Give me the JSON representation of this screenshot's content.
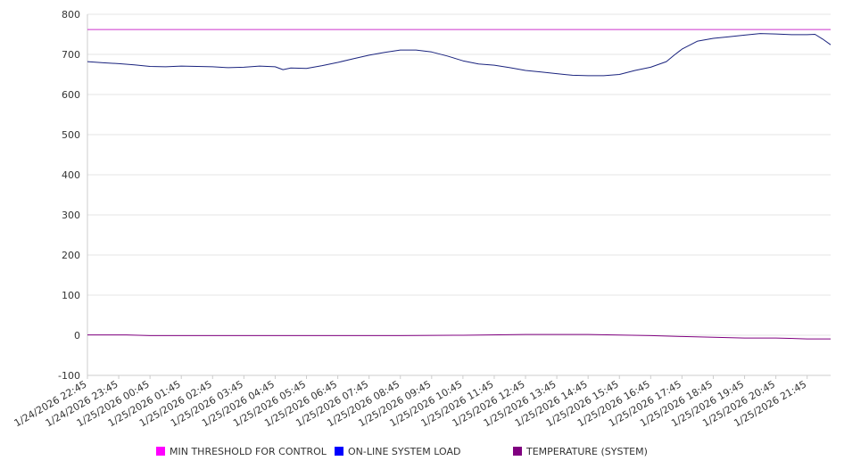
{
  "chart_data": {
    "type": "line",
    "title": "",
    "xlabel": "",
    "ylabel": "",
    "ylim": [
      -100,
      800
    ],
    "yticks": [
      "800",
      "700",
      "600",
      "500",
      "400",
      "300",
      "200",
      "100",
      "0",
      "-100"
    ],
    "grid": true,
    "legend_position": "bottom",
    "x_start": "1/24/2026 22:45",
    "x_end": "1/25/2026 22:30",
    "categories": [
      "1/24/2026 22:45",
      "1/24/2026 23:45",
      "1/25/2026 00:45",
      "1/25/2026 01:45",
      "1/25/2026 02:45",
      "1/25/2026 03:45",
      "1/25/2026 04:45",
      "1/25/2026 05:45",
      "1/25/2026 06:45",
      "1/25/2026 07:45",
      "1/25/2026 08:45",
      "1/25/2026 09:45",
      "1/25/2026 10:45",
      "1/25/2026 11:45",
      "1/25/2026 12:45",
      "1/25/2026 13:45",
      "1/25/2026 14:45",
      "1/25/2026 15:45",
      "1/25/2026 16:45",
      "1/25/2026 17:45",
      "1/25/2026 18:45",
      "1/25/2026 19:45",
      "1/25/2026 20:45",
      "1/25/2026 21:45"
    ],
    "series": [
      {
        "name": "MIN THRESHOLD FOR CONTROL",
        "color": "#cc33cc",
        "swatch": "#ff00ff",
        "points": [
          [
            "1/24/2026 22:45",
            762
          ],
          [
            "1/25/2026 22:30",
            762
          ]
        ]
      },
      {
        "name": "ON-LINE SYSTEM LOAD",
        "color": "#1a237e",
        "swatch": "#0000ff",
        "points": [
          [
            "1/24/2026 22:45",
            682
          ],
          [
            "1/24/2026 23:15",
            679
          ],
          [
            "1/24/2026 23:45",
            677
          ],
          [
            "1/25/2026 00:15",
            674
          ],
          [
            "1/25/2026 00:45",
            670
          ],
          [
            "1/25/2026 01:15",
            669
          ],
          [
            "1/25/2026 01:45",
            671
          ],
          [
            "1/25/2026 02:15",
            670
          ],
          [
            "1/25/2026 02:45",
            669
          ],
          [
            "1/25/2026 03:15",
            667
          ],
          [
            "1/25/2026 03:45",
            668
          ],
          [
            "1/25/2026 04:15",
            671
          ],
          [
            "1/25/2026 04:45",
            669
          ],
          [
            "1/25/2026 05:00",
            662
          ],
          [
            "1/25/2026 05:15",
            666
          ],
          [
            "1/25/2026 05:45",
            665
          ],
          [
            "1/25/2026 06:15",
            672
          ],
          [
            "1/25/2026 06:45",
            680
          ],
          [
            "1/25/2026 07:15",
            689
          ],
          [
            "1/25/2026 07:45",
            698
          ],
          [
            "1/25/2026 08:15",
            705
          ],
          [
            "1/25/2026 08:45",
            711
          ],
          [
            "1/25/2026 09:15",
            711
          ],
          [
            "1/25/2026 09:45",
            706
          ],
          [
            "1/25/2026 10:15",
            696
          ],
          [
            "1/25/2026 10:45",
            684
          ],
          [
            "1/25/2026 11:15",
            676
          ],
          [
            "1/25/2026 11:45",
            673
          ],
          [
            "1/25/2026 12:15",
            667
          ],
          [
            "1/25/2026 12:45",
            660
          ],
          [
            "1/25/2026 13:15",
            656
          ],
          [
            "1/25/2026 13:45",
            652
          ],
          [
            "1/25/2026 14:15",
            648
          ],
          [
            "1/25/2026 14:45",
            647
          ],
          [
            "1/25/2026 15:15",
            647
          ],
          [
            "1/25/2026 15:45",
            650
          ],
          [
            "1/25/2026 16:15",
            660
          ],
          [
            "1/25/2026 16:45",
            668
          ],
          [
            "1/25/2026 17:15",
            682
          ],
          [
            "1/25/2026 17:30",
            698
          ],
          [
            "1/25/2026 17:45",
            713
          ],
          [
            "1/25/2026 18:15",
            733
          ],
          [
            "1/25/2026 18:45",
            740
          ],
          [
            "1/25/2026 19:15",
            744
          ],
          [
            "1/25/2026 19:45",
            748
          ],
          [
            "1/25/2026 20:15",
            752
          ],
          [
            "1/25/2026 20:45",
            751
          ],
          [
            "1/25/2026 21:15",
            749
          ],
          [
            "1/25/2026 21:45",
            749
          ],
          [
            "1/25/2026 22:00",
            750
          ],
          [
            "1/25/2026 22:15",
            738
          ],
          [
            "1/25/2026 22:30",
            724
          ]
        ]
      },
      {
        "name": "TEMPERATURE (SYSTEM)",
        "color": "#800080",
        "swatch": "#800080",
        "points": [
          [
            "1/24/2026 22:45",
            1
          ],
          [
            "1/25/2026 00:00",
            1
          ],
          [
            "1/25/2026 00:45",
            -1
          ],
          [
            "1/25/2026 02:45",
            -1
          ],
          [
            "1/25/2026 04:45",
            -1
          ],
          [
            "1/25/2026 06:45",
            -1
          ],
          [
            "1/25/2026 08:45",
            -1
          ],
          [
            "1/25/2026 10:45",
            0
          ],
          [
            "1/25/2026 12:45",
            2
          ],
          [
            "1/25/2026 14:45",
            2
          ],
          [
            "1/25/2026 16:45",
            -1
          ],
          [
            "1/25/2026 17:45",
            -3
          ],
          [
            "1/25/2026 18:45",
            -5
          ],
          [
            "1/25/2026 19:45",
            -7
          ],
          [
            "1/25/2026 20:45",
            -7
          ],
          [
            "1/25/2026 21:45",
            -9
          ],
          [
            "1/25/2026 22:30",
            -9
          ]
        ]
      }
    ]
  }
}
